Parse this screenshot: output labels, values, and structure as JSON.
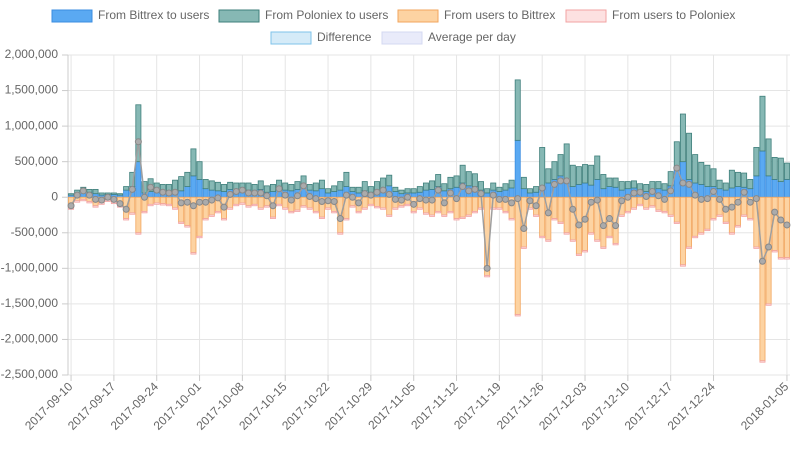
{
  "chart_data": {
    "type": "bar",
    "stacked": true,
    "categories": [
      "2017-09-10",
      "2017-09-11",
      "2017-09-12",
      "2017-09-13",
      "2017-09-14",
      "2017-09-15",
      "2017-09-16",
      "2017-09-17",
      "2017-09-18",
      "2017-09-19",
      "2017-09-20",
      "2017-09-21",
      "2017-09-22",
      "2017-09-23",
      "2017-09-24",
      "2017-09-25",
      "2017-09-26",
      "2017-09-27",
      "2017-09-28",
      "2017-09-29",
      "2017-09-30",
      "2017-10-01",
      "2017-10-02",
      "2017-10-03",
      "2017-10-04",
      "2017-10-05",
      "2017-10-06",
      "2017-10-07",
      "2017-10-08",
      "2017-10-09",
      "2017-10-10",
      "2017-10-11",
      "2017-10-12",
      "2017-10-13",
      "2017-10-14",
      "2017-10-15",
      "2017-10-16",
      "2017-10-17",
      "2017-10-18",
      "2017-10-19",
      "2017-10-20",
      "2017-10-21",
      "2017-10-22",
      "2017-10-23",
      "2017-10-24",
      "2017-10-25",
      "2017-10-26",
      "2017-10-27",
      "2017-10-28",
      "2017-10-29",
      "2017-10-30",
      "2017-10-31",
      "2017-11-01",
      "2017-11-02",
      "2017-11-03",
      "2017-11-04",
      "2017-11-05",
      "2017-11-06",
      "2017-11-07",
      "2017-11-08",
      "2017-11-09",
      "2017-11-10",
      "2017-11-11",
      "2017-11-12",
      "2017-11-13",
      "2017-11-14",
      "2017-11-15",
      "2017-11-16",
      "2017-11-17",
      "2017-11-18",
      "2017-11-19",
      "2017-11-20",
      "2017-11-21",
      "2017-11-22",
      "2017-11-23",
      "2017-11-24",
      "2017-11-25",
      "2017-11-26",
      "2017-11-27",
      "2017-11-28",
      "2017-11-29",
      "2017-11-30",
      "2017-12-01",
      "2017-12-02",
      "2017-12-03",
      "2017-12-04",
      "2017-12-05",
      "2017-12-06",
      "2017-12-07",
      "2017-12-08",
      "2017-12-09",
      "2017-12-10",
      "2017-12-11",
      "2017-12-12",
      "2017-12-13",
      "2017-12-14",
      "2017-12-15",
      "2017-12-16",
      "2017-12-17",
      "2017-12-18",
      "2017-12-19",
      "2017-12-20",
      "2017-12-21",
      "2017-12-22",
      "2017-12-23",
      "2017-12-24",
      "2017-12-25",
      "2017-12-26",
      "2017-12-27",
      "2017-12-28",
      "2017-12-29",
      "2017-12-30",
      "2017-12-31",
      "2018-01-01",
      "2018-01-02",
      "2018-01-03",
      "2018-01-04",
      "2018-01-05"
    ],
    "xticks": [
      "2017-09-10",
      "2017-09-17",
      "2017-09-24",
      "2017-10-01",
      "2017-10-08",
      "2017-10-15",
      "2017-10-22",
      "2017-10-29",
      "2017-11-05",
      "2017-11-12",
      "2017-11-19",
      "2017-11-26",
      "2017-12-03",
      "2017-12-10",
      "2017-12-17",
      "2017-12-24",
      "2018-01-05"
    ],
    "series": [
      {
        "name": "From Bittrex to users",
        "color": "#5aa9f2",
        "border": "#3b8de0",
        "stack": "pos",
        "values": [
          30000,
          60000,
          80000,
          70000,
          50000,
          30000,
          40000,
          40000,
          30000,
          100000,
          150000,
          500000,
          60000,
          80000,
          80000,
          70000,
          60000,
          60000,
          90000,
          150000,
          300000,
          250000,
          120000,
          100000,
          90000,
          80000,
          110000,
          90000,
          90000,
          100000,
          80000,
          110000,
          70000,
          80000,
          120000,
          100000,
          90000,
          110000,
          150000,
          100000,
          90000,
          120000,
          60000,
          80000,
          100000,
          150000,
          80000,
          60000,
          90000,
          70000,
          100000,
          120000,
          160000,
          80000,
          50000,
          60000,
          60000,
          70000,
          100000,
          110000,
          150000,
          90000,
          120000,
          140000,
          200000,
          160000,
          150000,
          100000,
          60000,
          100000,
          80000,
          100000,
          130000,
          800000,
          120000,
          60000,
          70000,
          150000,
          200000,
          250000,
          300000,
          200000,
          150000,
          180000,
          200000,
          170000,
          250000,
          120000,
          150000,
          140000,
          100000,
          120000,
          130000,
          100000,
          80000,
          110000,
          120000,
          100000,
          160000,
          380000,
          500000,
          250000,
          200000,
          180000,
          150000,
          150000,
          120000,
          100000,
          130000,
          150000,
          140000,
          120000,
          300000,
          650000,
          300000,
          250000,
          220000,
          250000
        ]
      },
      {
        "name": "From Poloniex to users",
        "color": "#86b8b4",
        "border": "#3f7f7b",
        "stack": "pos",
        "values": [
          20000,
          40000,
          60000,
          40000,
          60000,
          30000,
          20000,
          20000,
          20000,
          50000,
          200000,
          800000,
          160000,
          180000,
          120000,
          110000,
          120000,
          180000,
          200000,
          200000,
          380000,
          250000,
          130000,
          130000,
          120000,
          100000,
          100000,
          110000,
          110000,
          100000,
          100000,
          120000,
          90000,
          100000,
          120000,
          100000,
          90000,
          110000,
          150000,
          80000,
          110000,
          120000,
          60000,
          80000,
          120000,
          200000,
          60000,
          80000,
          130000,
          80000,
          120000,
          150000,
          150000,
          60000,
          50000,
          60000,
          60000,
          80000,
          100000,
          120000,
          170000,
          100000,
          160000,
          160000,
          250000,
          200000,
          180000,
          120000,
          60000,
          100000,
          60000,
          90000,
          110000,
          850000,
          160000,
          60000,
          80000,
          550000,
          200000,
          250000,
          300000,
          550000,
          300000,
          250000,
          260000,
          280000,
          330000,
          200000,
          120000,
          130000,
          120000,
          100000,
          100000,
          90000,
          100000,
          110000,
          100000,
          90000,
          200000,
          400000,
          670000,
          650000,
          400000,
          310000,
          300000,
          250000,
          120000,
          100000,
          250000,
          200000,
          200000,
          130000,
          400000,
          770000,
          520000,
          310000,
          330000,
          230000
        ]
      },
      {
        "name": "From users to Bittrex",
        "color": "#fdd3a2",
        "border": "#f2a65e",
        "stack": "neg",
        "values": [
          -150000,
          -50000,
          -30000,
          -60000,
          -120000,
          -80000,
          -40000,
          -70000,
          -120000,
          -300000,
          -220000,
          -500000,
          -200000,
          -100000,
          -80000,
          -90000,
          -100000,
          -150000,
          -350000,
          -400000,
          -780000,
          -550000,
          -300000,
          -250000,
          -200000,
          -300000,
          -150000,
          -100000,
          -80000,
          -120000,
          -100000,
          -150000,
          -120000,
          -280000,
          -100000,
          -150000,
          -200000,
          -180000,
          -120000,
          -150000,
          -200000,
          -280000,
          -150000,
          -200000,
          -500000,
          -300000,
          -120000,
          -200000,
          -150000,
          -100000,
          -130000,
          -150000,
          -250000,
          -150000,
          -120000,
          -100000,
          -200000,
          -150000,
          -220000,
          -250000,
          -200000,
          -250000,
          -200000,
          -300000,
          -280000,
          -250000,
          -200000,
          -150000,
          -1100000,
          -150000,
          -150000,
          -200000,
          -300000,
          -1650000,
          -700000,
          -150000,
          -250000,
          -550000,
          -600000,
          -300000,
          -350000,
          -500000,
          -600000,
          -800000,
          -750000,
          -500000,
          -600000,
          -700000,
          -550000,
          -650000,
          -250000,
          -200000,
          -150000,
          -100000,
          -150000,
          -120000,
          -180000,
          -200000,
          -250000,
          -350000,
          -950000,
          -700000,
          -550000,
          -500000,
          -450000,
          -300000,
          -250000,
          -350000,
          -500000,
          -400000,
          -250000,
          -300000,
          -700000,
          -2300000,
          -1500000,
          -750000,
          -850000,
          -850000
        ]
      },
      {
        "name": "From users to Poloniex",
        "color": "#fde1e1",
        "border": "#f2a3a3",
        "stack": "neg",
        "values": [
          -20000,
          -20000,
          -20000,
          -20000,
          -20000,
          -20000,
          -20000,
          -20000,
          -20000,
          -20000,
          -20000,
          -20000,
          -20000,
          -20000,
          -20000,
          -20000,
          -20000,
          -20000,
          -20000,
          -20000,
          -20000,
          -20000,
          -20000,
          -20000,
          -20000,
          -20000,
          -20000,
          -20000,
          -20000,
          -20000,
          -20000,
          -20000,
          -20000,
          -20000,
          -20000,
          -20000,
          -20000,
          -20000,
          -20000,
          -20000,
          -20000,
          -20000,
          -20000,
          -20000,
          -20000,
          -20000,
          -20000,
          -20000,
          -20000,
          -20000,
          -20000,
          -20000,
          -20000,
          -20000,
          -20000,
          -20000,
          -20000,
          -20000,
          -20000,
          -20000,
          -20000,
          -20000,
          -20000,
          -20000,
          -20000,
          -20000,
          -20000,
          -20000,
          -20000,
          -20000,
          -20000,
          -20000,
          -20000,
          -20000,
          -20000,
          -20000,
          -20000,
          -20000,
          -20000,
          -20000,
          -20000,
          -20000,
          -20000,
          -20000,
          -20000,
          -20000,
          -20000,
          -20000,
          -20000,
          -20000,
          -20000,
          -20000,
          -20000,
          -20000,
          -20000,
          -20000,
          -20000,
          -20000,
          -20000,
          -20000,
          -20000,
          -20000,
          -20000,
          -20000,
          -20000,
          -20000,
          -20000,
          -20000,
          -20000,
          -20000,
          -20000,
          -20000,
          -20000,
          -20000,
          -20000,
          -20000,
          -20000,
          -20000
        ]
      },
      {
        "name": "Difference",
        "color": "#d5ebf8",
        "border": "#7fc3ea",
        "line": "#9e9e9e",
        "point": "#ababab",
        "kind": "line",
        "values": [
          -120000,
          30000,
          90000,
          30000,
          -30000,
          -40000,
          0,
          -30000,
          -90000,
          -170000,
          110000,
          780000,
          0,
          140000,
          100000,
          70000,
          60000,
          70000,
          -80000,
          -70000,
          -120000,
          -70000,
          -70000,
          -40000,
          -10000,
          -140000,
          40000,
          80000,
          100000,
          60000,
          60000,
          60000,
          20000,
          -120000,
          120000,
          30000,
          -40000,
          20000,
          160000,
          10000,
          -20000,
          -60000,
          -50000,
          -60000,
          -300000,
          30000,
          0,
          -80000,
          50000,
          30000,
          70000,
          100000,
          40000,
          -30000,
          -40000,
          0,
          -100000,
          -20000,
          -40000,
          -40000,
          100000,
          -80000,
          60000,
          -20000,
          150000,
          90000,
          110000,
          50000,
          -1000000,
          30000,
          -30000,
          -30000,
          -80000,
          -20000,
          -440000,
          -50000,
          -120000,
          130000,
          -220000,
          180000,
          230000,
          230000,
          -170000,
          -390000,
          -310000,
          -70000,
          -40000,
          -400000,
          -300000,
          -400000,
          -50000,
          0,
          60000,
          70000,
          10000,
          80000,
          20000,
          -30000,
          90000,
          410000,
          200000,
          180000,
          30000,
          -30000,
          -20000,
          80000,
          -30000,
          -170000,
          -140000,
          -70000,
          70000,
          -70000,
          -20000,
          -900000,
          -700000,
          -210000,
          -320000,
          -390000
        ]
      },
      {
        "name": "Average per day",
        "color": "#e9ebfa",
        "border": "#d4d8f2",
        "kind": "legend"
      }
    ],
    "ylim": [
      -2500000,
      2000000
    ],
    "yticks": [
      {
        "value": -2500000,
        "label": "-2,500,000"
      },
      {
        "value": -2000000,
        "label": "-2,000,000"
      },
      {
        "value": -1500000,
        "label": "-1,500,000"
      },
      {
        "value": -1000000,
        "label": "-1,000,000"
      },
      {
        "value": -500000,
        "label": "-500,000"
      },
      0,
      {
        "value": 500000,
        "label": "500,000"
      },
      {
        "value": 1000000,
        "label": "1,000,000"
      },
      {
        "value": 1500000,
        "label": "1,500,000"
      },
      {
        "value": 2000000,
        "label": "2,000,000"
      }
    ],
    "grid": true
  }
}
